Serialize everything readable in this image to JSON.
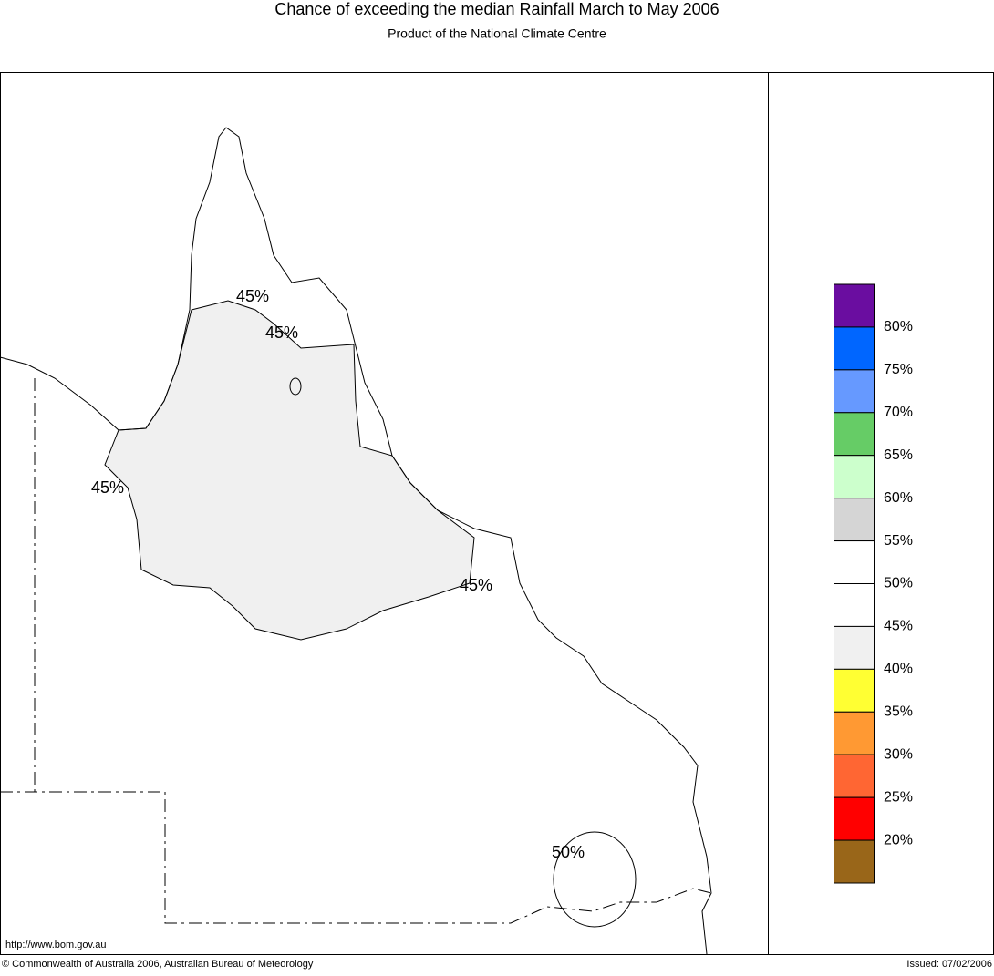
{
  "header": {
    "title": "Chance of exceeding the median Rainfall March to May 2006",
    "subtitle": "Product of the National Climate Centre"
  },
  "map": {
    "contour_labels": [
      "45%",
      "45%",
      "45%",
      "45%",
      "50%"
    ]
  },
  "legend": {
    "colors": [
      "#6a0da0",
      "#0066ff",
      "#6699ff",
      "#66cc66",
      "#ccffcc",
      "#d5d5d5",
      "#ffffff",
      "#ffffff",
      "#f0f0f0",
      "#ffff33",
      "#ff9933",
      "#ff6633",
      "#ff0000",
      "#996619"
    ],
    "labels": [
      "80%",
      "75%",
      "70%",
      "65%",
      "60%",
      "55%",
      "50%",
      "45%",
      "40%",
      "35%",
      "30%",
      "25%",
      "20%"
    ]
  },
  "footer": {
    "url": "http://www.bom.gov.au",
    "copyright": "© Commonwealth of Australia 2006, Australian Bureau of Meteorology",
    "issued": "Issued: 07/02/2006"
  }
}
